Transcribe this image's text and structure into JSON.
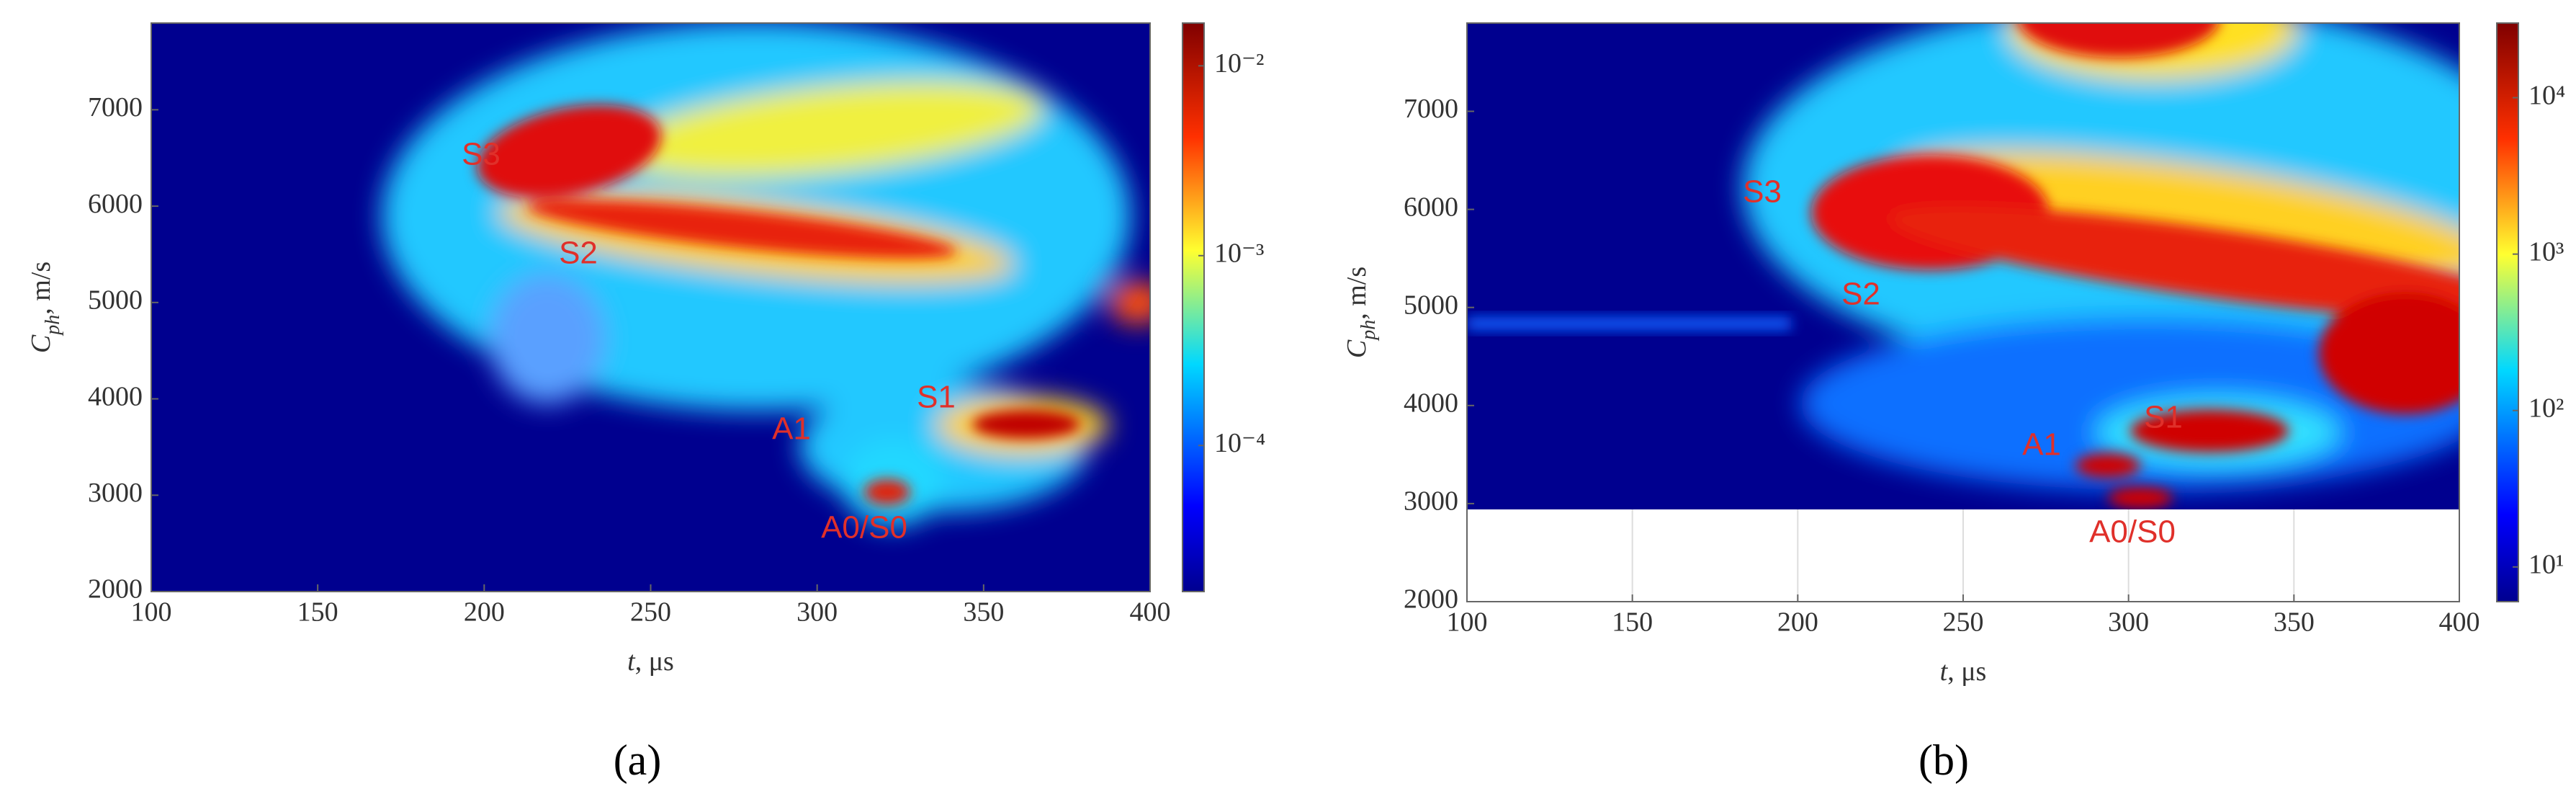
{
  "chart_data": [
    {
      "type": "heatmap",
      "panel_label": "(a)",
      "xlabel": {
        "symbol": "t",
        "unit": ", μs"
      },
      "ylabel": {
        "symbol": "C",
        "subscript": "ph",
        "unit": ", m/s"
      },
      "xlim": [
        100,
        400
      ],
      "ylim": [
        2000,
        7900
      ],
      "xticks": [
        100,
        150,
        200,
        250,
        300,
        350,
        400
      ],
      "yticks": [
        2000,
        3000,
        4000,
        5000,
        6000,
        7000
      ],
      "grid": false,
      "colorbar": {
        "scale": "log",
        "lim": [
          1.7e-05,
          0.0168
        ],
        "ticks": [
          {
            "value": 0.01,
            "label": "10⁻²"
          },
          {
            "value": 0.001,
            "label": "10⁻³"
          },
          {
            "value": 0.0001,
            "label": "10⁻⁴"
          }
        ]
      },
      "annotations": [
        "S3",
        "S2",
        "A1",
        "S1",
        "A0/S0"
      ]
    },
    {
      "type": "heatmap",
      "panel_label": "(b)",
      "xlabel": {
        "symbol": "t",
        "unit": ", μs"
      },
      "ylabel": {
        "symbol": "C",
        "subscript": "ph",
        "unit": ", m/s"
      },
      "xlim": [
        100,
        400
      ],
      "ylim": [
        2000,
        7900
      ],
      "xticks": [
        100,
        150,
        200,
        250,
        300,
        350,
        400
      ],
      "yticks": [
        2000,
        3000,
        4000,
        5000,
        6000,
        7000
      ],
      "grid": true,
      "colorbar": {
        "scale": "log",
        "lim": [
          6,
          30000
        ],
        "ticks": [
          {
            "value": 10000,
            "label": "10⁴"
          },
          {
            "value": 1000,
            "label": "10³"
          },
          {
            "value": 100,
            "label": "10²"
          },
          {
            "value": 10,
            "label": "10¹"
          }
        ]
      },
      "annotations": [
        "S3",
        "S2",
        "A1",
        "S1",
        "A0/S0"
      ]
    }
  ]
}
